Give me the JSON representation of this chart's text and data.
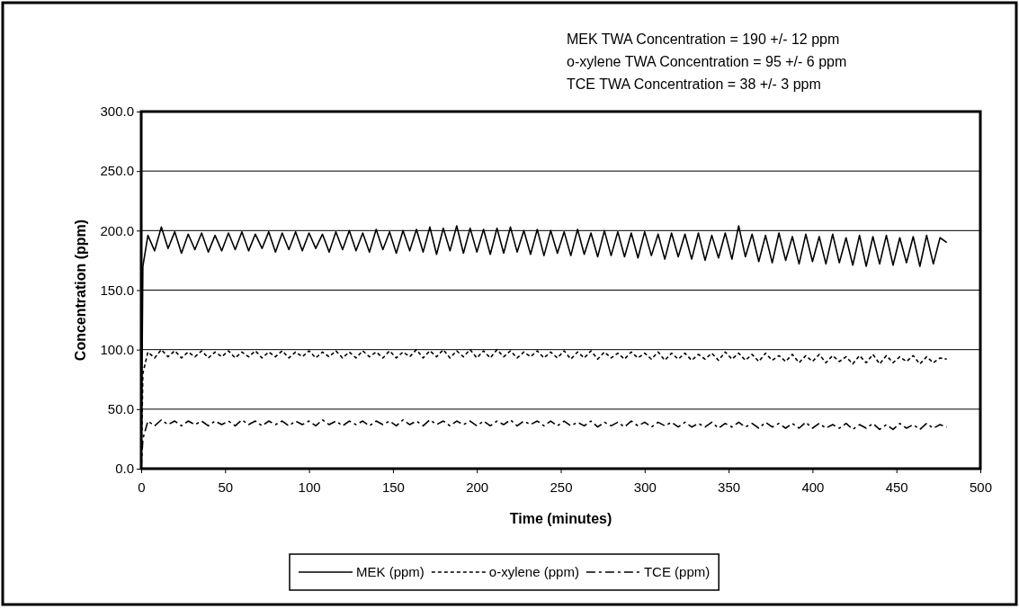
{
  "chart_data": {
    "type": "line",
    "xlabel": "Time (minutes)",
    "ylabel": "Concentration (ppm)",
    "annotations": [
      "MEK TWA Concentration = 190 +/- 12 ppm",
      "o-xylene TWA Concentration = 95 +/- 6 ppm",
      "TCE TWA Concentration = 38 +/- 3 ppm"
    ],
    "xlim": [
      0,
      500
    ],
    "xticks": [
      0,
      50,
      100,
      150,
      200,
      250,
      300,
      350,
      400,
      450,
      500
    ],
    "ylim": [
      0,
      300
    ],
    "yticks": [
      {
        "value": 0,
        "label": "0.0"
      },
      {
        "value": 50,
        "label": "50.0"
      },
      {
        "value": 100,
        "label": "100.0"
      },
      {
        "value": 150,
        "label": "150.0"
      },
      {
        "value": 200,
        "label": "200.0"
      },
      {
        "value": 250,
        "label": "250.0"
      },
      {
        "value": 300,
        "label": "300.0"
      }
    ],
    "grid": "y",
    "legend": "bottom",
    "marker": "none",
    "x": [
      0,
      1,
      4,
      8,
      12,
      16,
      20,
      24,
      28,
      32,
      36,
      40,
      44,
      48,
      52,
      56,
      60,
      64,
      68,
      72,
      76,
      80,
      84,
      88,
      92,
      96,
      100,
      104,
      108,
      112,
      116,
      120,
      124,
      128,
      132,
      136,
      140,
      144,
      148,
      152,
      156,
      160,
      164,
      168,
      172,
      176,
      180,
      184,
      188,
      192,
      196,
      200,
      204,
      208,
      212,
      216,
      220,
      224,
      228,
      232,
      236,
      240,
      244,
      248,
      252,
      256,
      260,
      264,
      268,
      272,
      276,
      280,
      284,
      288,
      292,
      296,
      300,
      304,
      308,
      312,
      316,
      320,
      324,
      328,
      332,
      336,
      340,
      344,
      348,
      352,
      356,
      360,
      364,
      368,
      372,
      376,
      380,
      384,
      388,
      392,
      396,
      400,
      404,
      408,
      412,
      416,
      420,
      424,
      428,
      432,
      436,
      440,
      444,
      448,
      452,
      456,
      460,
      464,
      468,
      472,
      476,
      480
    ],
    "series": [
      {
        "name": "MEK (ppm)",
        "color": "#000000",
        "line_style": "solid",
        "values": [
          0,
          170,
          196,
          183,
          203,
          185,
          199,
          181,
          197,
          184,
          198,
          182,
          196,
          183,
          198,
          184,
          199,
          183,
          197,
          185,
          199,
          182,
          198,
          184,
          199,
          183,
          198,
          185,
          197,
          182,
          199,
          184,
          200,
          183,
          198,
          182,
          201,
          184,
          199,
          181,
          200,
          183,
          201,
          182,
          203,
          180,
          202,
          183,
          204,
          181,
          202,
          182,
          201,
          180,
          202,
          181,
          203,
          182,
          200,
          180,
          201,
          179,
          200,
          181,
          199,
          179,
          201,
          180,
          198,
          178,
          200,
          179,
          199,
          178,
          198,
          177,
          199,
          179,
          197,
          176,
          198,
          178,
          197,
          176,
          198,
          175,
          196,
          177,
          198,
          176,
          204,
          178,
          197,
          174,
          196,
          173,
          198,
          175,
          195,
          172,
          197,
          174,
          195,
          172,
          197,
          173,
          194,
          171,
          196,
          170,
          195,
          172,
          196,
          171,
          194,
          173,
          195,
          170,
          196,
          172,
          194,
          190
        ]
      },
      {
        "name": "o-xylene (ppm)",
        "color": "#000000",
        "line_style": "dotted",
        "values": [
          0,
          80,
          98,
          93,
          100,
          94,
          99,
          93,
          98,
          94,
          99,
          93,
          98,
          94,
          99,
          93,
          98,
          94,
          99,
          93,
          98,
          94,
          99,
          93,
          98,
          94,
          99,
          93,
          98,
          94,
          99,
          93,
          98,
          93,
          99,
          94,
          98,
          93,
          99,
          93,
          98,
          94,
          100,
          93,
          99,
          94,
          100,
          93,
          99,
          94,
          100,
          93,
          99,
          93,
          100,
          94,
          99,
          93,
          98,
          94,
          99,
          93,
          98,
          93,
          99,
          92,
          98,
          93,
          99,
          92,
          98,
          93,
          97,
          92,
          98,
          93,
          97,
          92,
          98,
          91,
          97,
          92,
          97,
          91,
          96,
          92,
          97,
          91,
          98,
          92,
          97,
          91,
          96,
          90,
          97,
          91,
          95,
          90,
          96,
          89,
          95,
          90,
          96,
          89,
          95,
          90,
          94,
          88,
          95,
          89,
          96,
          88,
          95,
          89,
          94,
          90,
          95,
          88,
          94,
          89,
          93,
          92
        ]
      },
      {
        "name": "TCE (ppm)",
        "color": "#000000",
        "line_style": "dashed",
        "values": [
          0,
          25,
          40,
          36,
          41,
          37,
          40,
          36,
          40,
          37,
          40,
          36,
          40,
          37,
          40,
          36,
          41,
          37,
          40,
          36,
          40,
          37,
          40,
          36,
          40,
          37,
          40,
          36,
          41,
          37,
          40,
          36,
          40,
          37,
          40,
          36,
          40,
          37,
          40,
          36,
          41,
          37,
          40,
          36,
          41,
          37,
          40,
          36,
          40,
          37,
          40,
          36,
          40,
          36,
          40,
          37,
          41,
          36,
          40,
          37,
          40,
          36,
          40,
          36,
          40,
          36,
          39,
          36,
          40,
          35,
          39,
          36,
          39,
          35,
          40,
          36,
          39,
          35,
          39,
          36,
          39,
          35,
          39,
          35,
          38,
          35,
          39,
          34,
          38,
          35,
          39,
          35,
          38,
          34,
          39,
          35,
          38,
          34,
          38,
          34,
          39,
          34,
          38,
          34,
          37,
          34,
          38,
          33,
          37,
          34,
          38,
          33,
          37,
          33,
          38,
          34,
          37,
          33,
          38,
          34,
          37,
          35
        ]
      }
    ]
  }
}
